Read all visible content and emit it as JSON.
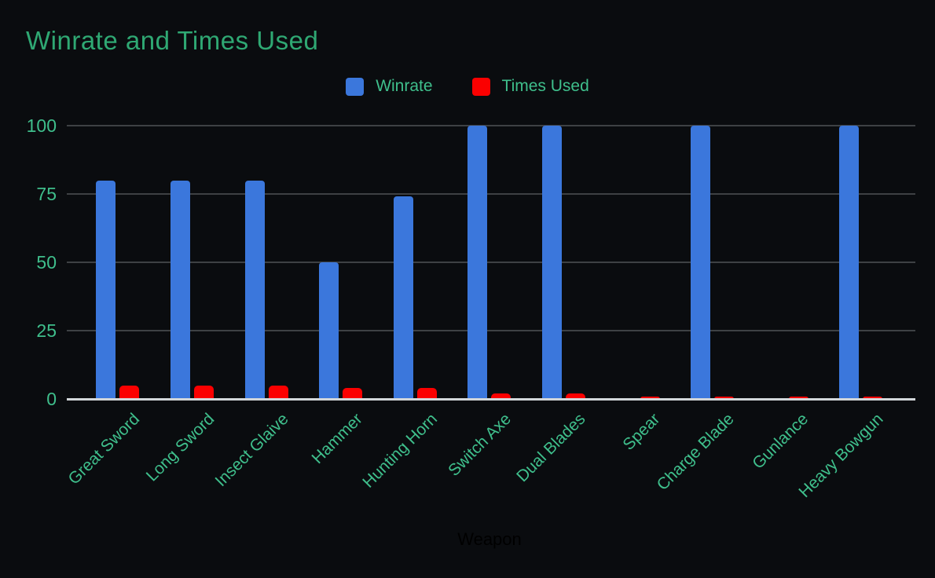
{
  "title": "Winrate and Times Used",
  "legend": [
    {
      "label": "Winrate",
      "color": "#3b77dc"
    },
    {
      "label": "Times Used",
      "color": "#fb0000"
    }
  ],
  "chart_data": {
    "type": "bar",
    "categories": [
      "Great Sword",
      "Long Sword",
      "Insect Glaive",
      "Hammer",
      "Hunting Horn",
      "Switch Axe",
      "Dual Blades",
      "Spear",
      "Charge Blade",
      "Gunlance",
      "Heavy Bowgun"
    ],
    "series": [
      {
        "name": "Winrate",
        "color": "#3b77dc",
        "values": [
          80,
          80,
          80,
          50,
          74,
          100,
          100,
          0,
          100,
          0,
          100
        ]
      },
      {
        "name": "Times Used",
        "color": "#fb0000",
        "values": [
          5,
          5,
          5,
          4,
          4,
          2,
          2,
          1,
          1,
          1,
          1
        ]
      }
    ],
    "title": "Winrate and Times Used",
    "xlabel": "Weapon",
    "ylabel": "",
    "yticks": [
      0,
      25,
      50,
      75,
      100
    ],
    "ylim": [
      0,
      100
    ],
    "grid": true,
    "legend_position": "top"
  },
  "colors": {
    "background": "#0a0c0f",
    "title_text": "#2fa873",
    "axis_text": "#3fbf8c",
    "gridline": "#3e4144",
    "baseline": "#d2d6d9",
    "xaxis_title_text": "#000000"
  }
}
